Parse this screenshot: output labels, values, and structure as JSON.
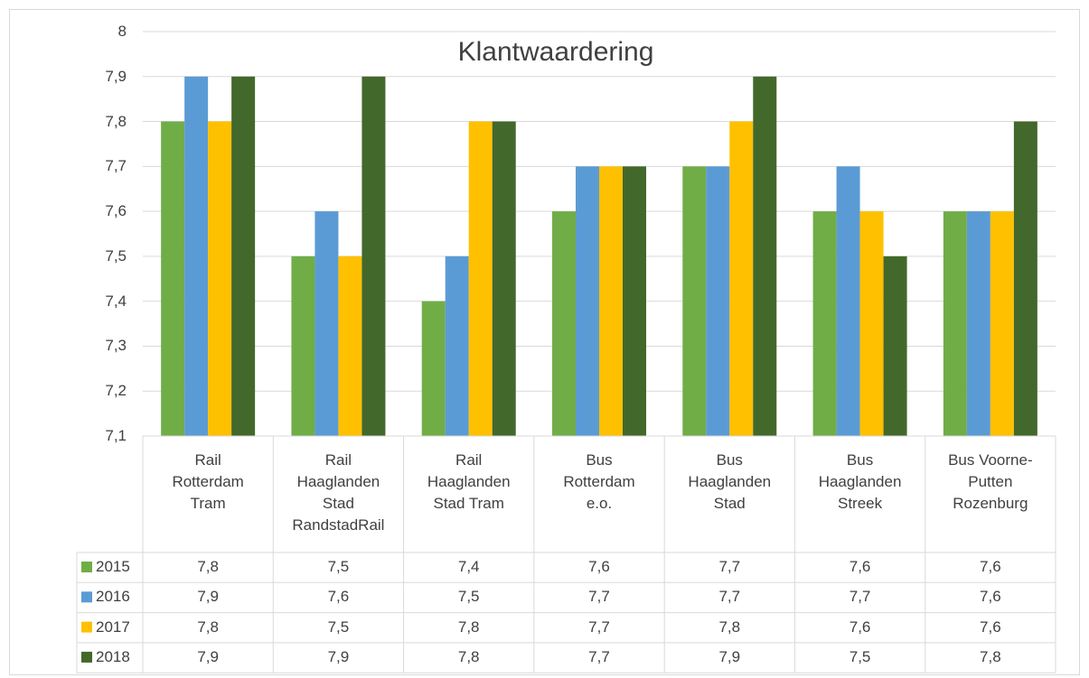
{
  "chart_data": {
    "type": "bar",
    "title": "Klantwaardering",
    "categories": [
      "Rail Rotterdam Tram",
      "Rail Haaglanden Stad RandstadRail",
      "Rail Haaglanden Stad Tram",
      "Bus Rotterdam e.o.",
      "Bus Haaglanden Stad",
      "Bus Haaglanden Streek",
      "Bus Voorne-Putten Rozenburg"
    ],
    "series": [
      {
        "name": "2015",
        "color": "#70ad47",
        "values": [
          7.8,
          7.5,
          7.4,
          7.6,
          7.7,
          7.6,
          7.6
        ],
        "value_labels": [
          "7,8",
          "7,5",
          "7,4",
          "7,6",
          "7,7",
          "7,6",
          "7,6"
        ]
      },
      {
        "name": "2016",
        "color": "#5b9bd5",
        "values": [
          7.9,
          7.6,
          7.5,
          7.7,
          7.7,
          7.7,
          7.6
        ],
        "value_labels": [
          "7,9",
          "7,6",
          "7,5",
          "7,7",
          "7,7",
          "7,7",
          "7,6"
        ]
      },
      {
        "name": "2017",
        "color": "#ffc000",
        "values": [
          7.8,
          7.5,
          7.8,
          7.7,
          7.8,
          7.6,
          7.6
        ],
        "value_labels": [
          "7,8",
          "7,5",
          "7,8",
          "7,7",
          "7,8",
          "7,6",
          "7,6"
        ]
      },
      {
        "name": "2018",
        "color": "#43682b",
        "values": [
          7.9,
          7.9,
          7.8,
          7.7,
          7.9,
          7.5,
          7.8
        ],
        "value_labels": [
          "7,9",
          "7,9",
          "7,8",
          "7,7",
          "7,9",
          "7,5",
          "7,8"
        ]
      }
    ],
    "ylim": [
      7.1,
      8
    ],
    "yticks": [
      {
        "value": 7.1,
        "label": "7,1"
      },
      {
        "value": 7.2,
        "label": "7,2"
      },
      {
        "value": 7.3,
        "label": "7,3"
      },
      {
        "value": 7.4,
        "label": "7,4"
      },
      {
        "value": 7.5,
        "label": "7,5"
      },
      {
        "value": 7.6,
        "label": "7,6"
      },
      {
        "value": 7.7,
        "label": "7,7"
      },
      {
        "value": 7.8,
        "label": "7,8"
      },
      {
        "value": 7.9,
        "label": "7,9"
      },
      8
    ],
    "grid": true
  }
}
